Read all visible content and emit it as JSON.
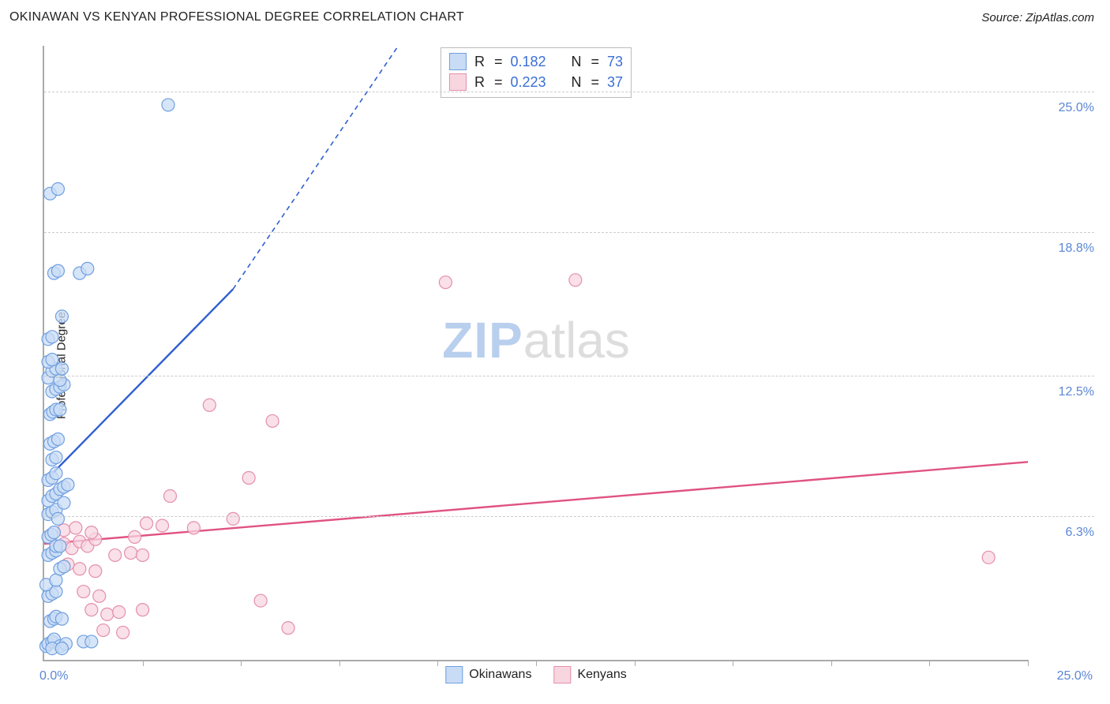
{
  "header": {
    "title": "OKINAWAN VS KENYAN PROFESSIONAL DEGREE CORRELATION CHART",
    "source_prefix": "Source: ",
    "source_name": "ZipAtlas.com"
  },
  "ylabel": "Professional Degree",
  "watermark": {
    "part1": "ZIP",
    "part2": "atlas"
  },
  "chart": {
    "type": "scatter",
    "xlim": [
      0,
      25
    ],
    "ylim": [
      0,
      27
    ],
    "y_ticks": [
      {
        "value": 6.3,
        "label": "6.3%"
      },
      {
        "value": 12.5,
        "label": "12.5%"
      },
      {
        "value": 18.8,
        "label": "18.8%"
      },
      {
        "value": 25.0,
        "label": "25.0%"
      }
    ],
    "x_ticks": [
      2.5,
      5.0,
      7.5,
      10.0,
      12.5,
      15.0,
      17.5,
      20.0,
      22.5,
      25.0
    ],
    "x_origin_label": "0.0%",
    "x_max_label": "25.0%",
    "background_color": "#ffffff",
    "grid_color": "#cccccc",
    "axis_color": "#aaaaaa",
    "marker_radius": 8,
    "marker_stroke_width": 1.2,
    "trend_line_width": 2.4,
    "trend_dash": "6,5"
  },
  "series": {
    "okinawans": {
      "label": "Okinawans",
      "fill": "#c9dcf5",
      "stroke": "#6f9fe0",
      "line_color": "#2f5fd0",
      "R": "0.182",
      "N": "73",
      "trend": {
        "x1": 0.1,
        "y1": 8.0,
        "x2": 4.8,
        "y2": 16.3,
        "x3": 9.0,
        "y3": 27.0
      },
      "points": [
        [
          0.05,
          0.6
        ],
        [
          0.1,
          0.7
        ],
        [
          0.2,
          0.8
        ],
        [
          0.25,
          0.9
        ],
        [
          0.4,
          0.6
        ],
        [
          0.55,
          0.7
        ],
        [
          1.0,
          0.8
        ],
        [
          0.15,
          1.7
        ],
        [
          0.25,
          1.8
        ],
        [
          0.3,
          1.9
        ],
        [
          0.45,
          1.8
        ],
        [
          0.1,
          2.8
        ],
        [
          0.2,
          2.9
        ],
        [
          0.3,
          3.0
        ],
        [
          0.05,
          3.3
        ],
        [
          0.1,
          4.6
        ],
        [
          0.2,
          4.7
        ],
        [
          0.3,
          4.8
        ],
        [
          0.1,
          5.4
        ],
        [
          0.18,
          5.5
        ],
        [
          0.25,
          5.6
        ],
        [
          0.1,
          6.4
        ],
        [
          0.2,
          6.5
        ],
        [
          0.3,
          6.6
        ],
        [
          0.35,
          6.2
        ],
        [
          0.1,
          7.0
        ],
        [
          0.2,
          7.2
        ],
        [
          0.3,
          7.3
        ],
        [
          0.4,
          7.5
        ],
        [
          0.5,
          7.6
        ],
        [
          0.6,
          7.7
        ],
        [
          0.5,
          6.9
        ],
        [
          0.1,
          7.9
        ],
        [
          0.2,
          8.0
        ],
        [
          0.3,
          8.2
        ],
        [
          0.2,
          8.8
        ],
        [
          0.3,
          8.9
        ],
        [
          0.15,
          9.5
        ],
        [
          0.25,
          9.6
        ],
        [
          0.35,
          9.7
        ],
        [
          0.15,
          10.8
        ],
        [
          0.22,
          10.9
        ],
        [
          0.3,
          11.0
        ],
        [
          0.4,
          11.0
        ],
        [
          0.2,
          11.8
        ],
        [
          0.3,
          11.9
        ],
        [
          0.4,
          12.0
        ],
        [
          0.5,
          12.1
        ],
        [
          0.1,
          12.4
        ],
        [
          0.4,
          12.3
        ],
        [
          0.2,
          12.7
        ],
        [
          0.3,
          12.8
        ],
        [
          0.45,
          12.8
        ],
        [
          0.1,
          13.1
        ],
        [
          0.2,
          13.2
        ],
        [
          0.1,
          14.1
        ],
        [
          0.2,
          14.2
        ],
        [
          0.45,
          15.1
        ],
        [
          0.25,
          17.0
        ],
        [
          0.35,
          17.1
        ],
        [
          0.9,
          17.0
        ],
        [
          1.1,
          17.2
        ],
        [
          0.15,
          20.5
        ],
        [
          0.35,
          20.7
        ],
        [
          0.3,
          3.5
        ],
        [
          0.4,
          4.0
        ],
        [
          0.5,
          4.1
        ],
        [
          0.2,
          0.5
        ],
        [
          0.45,
          0.5
        ],
        [
          0.3,
          5.0
        ],
        [
          0.4,
          5.0
        ],
        [
          3.15,
          24.4
        ],
        [
          1.2,
          0.8
        ]
      ]
    },
    "kenyans": {
      "label": "Kenyans",
      "fill": "#f8d6e0",
      "stroke": "#e48fab",
      "line_color": "#e05284",
      "R": "0.223",
      "N": "37",
      "trend": {
        "x1": 0.0,
        "y1": 5.1,
        "x2": 25.0,
        "y2": 8.7
      },
      "points": [
        [
          0.3,
          5.0
        ],
        [
          0.5,
          5.1
        ],
        [
          0.7,
          4.9
        ],
        [
          0.9,
          5.2
        ],
        [
          1.1,
          5.0
        ],
        [
          1.3,
          5.3
        ],
        [
          0.5,
          5.7
        ],
        [
          0.8,
          5.8
        ],
        [
          1.2,
          5.6
        ],
        [
          0.6,
          4.2
        ],
        [
          0.9,
          4.0
        ],
        [
          1.3,
          3.9
        ],
        [
          1.0,
          3.0
        ],
        [
          1.4,
          2.8
        ],
        [
          1.2,
          2.2
        ],
        [
          1.6,
          2.0
        ],
        [
          1.9,
          2.1
        ],
        [
          2.5,
          2.2
        ],
        [
          1.5,
          1.3
        ],
        [
          2.0,
          1.2
        ],
        [
          1.8,
          4.6
        ],
        [
          2.2,
          4.7
        ],
        [
          2.5,
          4.6
        ],
        [
          2.3,
          5.4
        ],
        [
          2.6,
          6.0
        ],
        [
          3.0,
          5.9
        ],
        [
          3.2,
          7.2
        ],
        [
          3.8,
          5.8
        ],
        [
          4.2,
          11.2
        ],
        [
          4.8,
          6.2
        ],
        [
          5.2,
          8.0
        ],
        [
          5.5,
          2.6
        ],
        [
          5.8,
          10.5
        ],
        [
          6.2,
          1.4
        ],
        [
          10.2,
          16.6
        ],
        [
          13.5,
          16.7
        ],
        [
          24.0,
          4.5
        ]
      ]
    }
  },
  "stats_legend": {
    "R_label": "R",
    "N_label": "N",
    "eq": "="
  }
}
